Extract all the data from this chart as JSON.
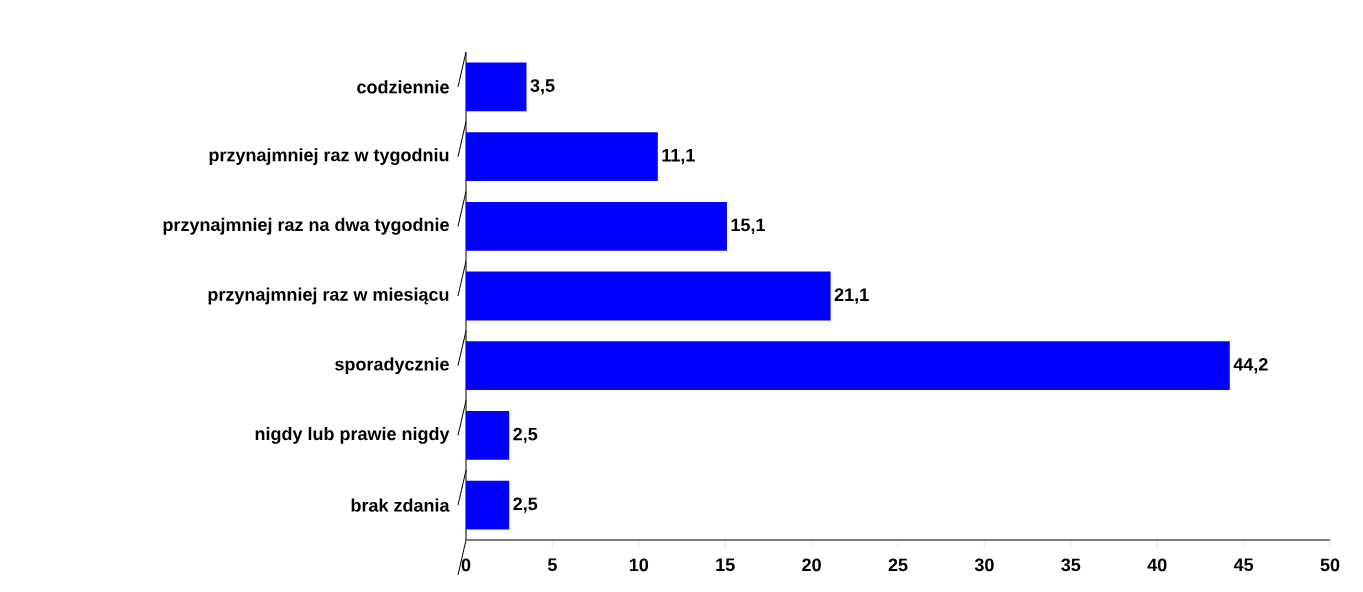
{
  "chart_data": {
    "type": "bar",
    "orientation": "horizontal",
    "categories": [
      "codziennie",
      "przynajmniej raz w tygodniu",
      "przynajmniej raz na dwa tygodnie",
      "przynajmniej raz w miesiącu",
      "sporadycznie",
      "nigdy lub prawie nigdy",
      "brak zdania"
    ],
    "values": [
      3.5,
      11.1,
      15.1,
      21.1,
      44.2,
      2.5,
      2.5
    ],
    "value_labels": [
      "3,5",
      "11,1",
      "15,1",
      "21,1",
      "44,2",
      "2,5",
      "2,5"
    ],
    "color": "#0000ff",
    "xlim": [
      0,
      50
    ],
    "xticks": [
      0,
      5,
      10,
      15,
      20,
      25,
      30,
      35,
      40,
      45,
      50
    ]
  }
}
